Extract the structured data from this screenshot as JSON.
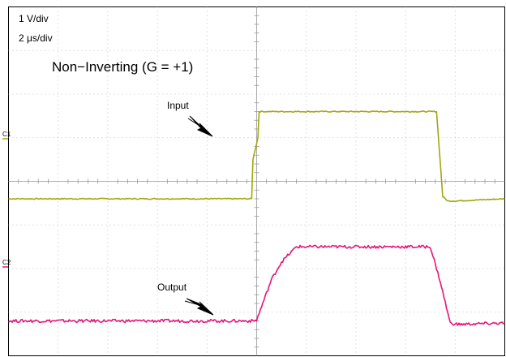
{
  "chart_data": {
    "type": "line",
    "title": "Non−Inverting (G = +1)",
    "scale_labels": [
      "1 V/div",
      "2 μs/div"
    ],
    "x_unit": "μs",
    "y_unit": "div",
    "xlim": [
      0,
      20
    ],
    "ylim": [
      0,
      8
    ],
    "grid": true,
    "grid_divisions": {
      "x": 10,
      "y": 8
    },
    "channel_markers": [
      "C1",
      "C2"
    ],
    "annotations": [
      {
        "text": "Input",
        "series": "C1",
        "points_to": {
          "x": 10.0,
          "y": 5.0
        }
      },
      {
        "text": "Output",
        "series": "C2",
        "points_to": {
          "x": 10.0,
          "y": 1.0
        }
      }
    ],
    "series": [
      {
        "name": "",
        "marker": "C1",
        "color": "#a5a50f",
        "x": [
          0,
          9.8,
          9.85,
          10.05,
          10.1,
          17.25,
          17.5,
          17.7,
          18.0,
          20
        ],
        "y": [
          3.6,
          3.6,
          4.5,
          5.0,
          5.6,
          5.6,
          3.65,
          3.55,
          3.55,
          3.6
        ]
      },
      {
        "name": "",
        "marker": "C2",
        "color": "#e6147a",
        "x": [
          0,
          9.9,
          10.0,
          10.6,
          11.0,
          11.6,
          17.0,
          17.4,
          17.8,
          18.1,
          20
        ],
        "y": [
          0.8,
          0.8,
          0.82,
          1.75,
          2.15,
          2.5,
          2.5,
          1.7,
          0.75,
          0.72,
          0.75
        ]
      }
    ]
  }
}
